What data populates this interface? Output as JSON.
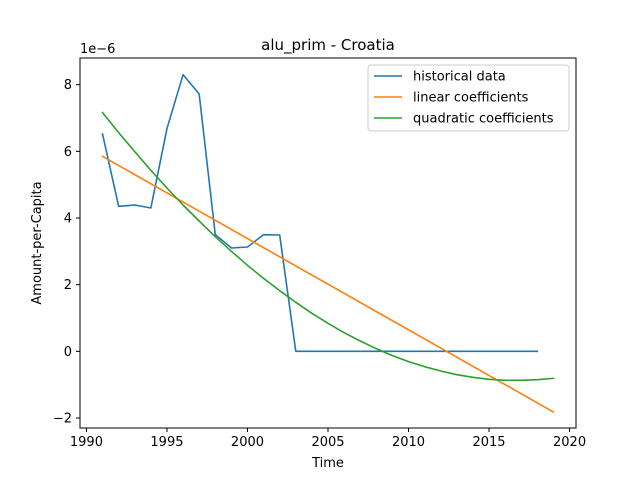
{
  "chart_data": {
    "type": "line",
    "title": "alu_prim - Croatia",
    "xlabel": "Time",
    "ylabel": "Amount-per-Capita",
    "y_offset_label": "1e−6",
    "xlim": [
      1989.6,
      2020.4
    ],
    "ylim": [
      -2.3,
      8.8
    ],
    "x_ticks": [
      1990,
      1995,
      2000,
      2005,
      2010,
      2015,
      2020
    ],
    "y_ticks": [
      -2,
      0,
      2,
      4,
      6,
      8
    ],
    "y_tick_labels": [
      "−2",
      "0",
      "2",
      "4",
      "6",
      "8"
    ],
    "grid": false,
    "legend_position": "top-right",
    "series": [
      {
        "name": "historical data",
        "color": "#1f77b4",
        "x": [
          1991,
          1992,
          1993,
          1994,
          1995,
          1996,
          1997,
          1998,
          1999,
          2000,
          2001,
          2002,
          2003,
          2004,
          2005,
          2006,
          2007,
          2008,
          2009,
          2010,
          2011,
          2012,
          2013,
          2014,
          2015,
          2016,
          2017,
          2018
        ],
        "y": [
          6.52,
          4.35,
          4.39,
          4.3,
          6.68,
          8.3,
          7.72,
          3.5,
          3.1,
          3.13,
          3.5,
          3.49,
          0,
          0,
          0,
          0,
          0,
          0,
          0,
          0,
          0,
          0,
          0,
          0,
          0,
          0,
          0,
          0
        ]
      },
      {
        "name": "linear coefficients",
        "color": "#ff7f0e",
        "x": [
          1991,
          2019
        ],
        "y": [
          5.85,
          -1.82
        ]
      },
      {
        "name": "quadratic coefficients",
        "color": "#2ca02c",
        "x": [
          1991,
          1992,
          1993,
          1994,
          1995,
          1996,
          1997,
          1998,
          1999,
          2000,
          2001,
          2002,
          2003,
          2004,
          2005,
          2006,
          2007,
          2008,
          2009,
          2010,
          2011,
          2012,
          2013,
          2014,
          2015,
          2016,
          2017,
          2018,
          2019
        ],
        "y": [
          7.16,
          6.56,
          5.99,
          5.43,
          4.9,
          4.39,
          3.91,
          3.44,
          3.0,
          2.58,
          2.19,
          1.82,
          1.47,
          1.14,
          0.84,
          0.56,
          0.31,
          0.08,
          -0.13,
          -0.31,
          -0.46,
          -0.59,
          -0.7,
          -0.78,
          -0.84,
          -0.87,
          -0.87,
          -0.85,
          -0.81
        ]
      }
    ]
  }
}
